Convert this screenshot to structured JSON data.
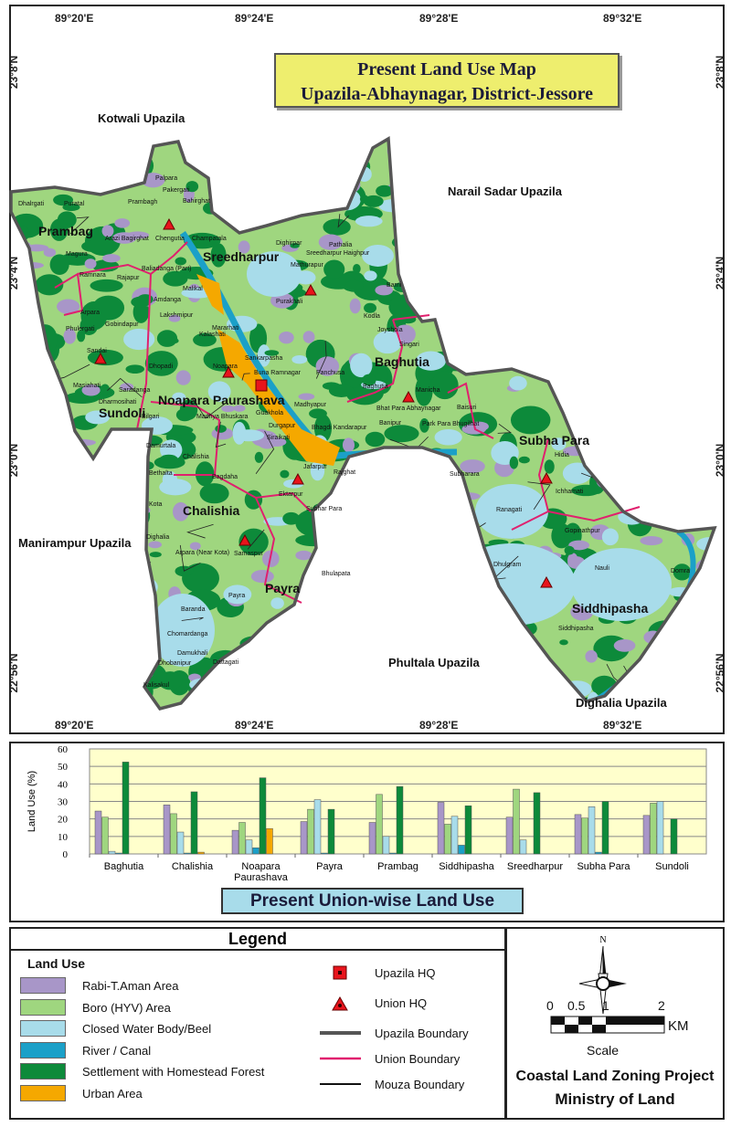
{
  "title": {
    "line1": "Present Land Use  Map",
    "line2": "Upazila-Abhaynagar, District-Jessore"
  },
  "coords": {
    "longitudes": [
      "89°20'E",
      "89°24'E",
      "89°28'E",
      "89°32'E"
    ],
    "latitudes": [
      "23°8'N",
      "23°4'N",
      "23°0'N",
      "22°56'N"
    ]
  },
  "neighbours": [
    "Kotwali Upazila",
    "Narail Sadar Upazila",
    "Manirampur Upazila",
    "Phultala Upazila",
    "Dighalia Upazila"
  ],
  "unions": [
    "Prambag",
    "Sreedharpur",
    "Baghutia",
    "Noapara Paurashava",
    "Sundoli",
    "Chalishia",
    "Subha Para",
    "Payra",
    "Siddhipasha"
  ],
  "villages": [
    "Dhalrgati",
    "Puratal",
    "Prambagh",
    "Palpara",
    "Pakergati",
    "Bahirghat",
    "Arazi Bagirghat",
    "Chengutia",
    "Champatala",
    "Magura",
    "Baliadanga (Part)",
    "Ramnara",
    "Rajapur",
    "Amdanga",
    "Malikal",
    "Lakshmipur",
    "Arpara",
    "Gobindapur",
    "Phulergati",
    "Mararhati",
    "Kalashati",
    "Sandai",
    "Dhopadi",
    "Noapara",
    "Masiahati",
    "Saradanga",
    "Dharmosihati",
    "Bilgari",
    "Madhya Bhuskara",
    "Guakhola",
    "Durgapur",
    "Siraikati",
    "Dighirpar",
    "Pathalia",
    "Sreedharpur Haighpur",
    "Mathurapur",
    "Purakhali",
    "Kodla",
    "Barni",
    "Joyshola",
    "Singari",
    "Sankarpasha",
    "Buna Ramnagar",
    "Panchusa",
    "Baghutia",
    "Madhyapur",
    "Bhagdi Kandarapur",
    "Bhat Para Abhaynagar",
    "Manicha",
    "Banipur",
    "Park Para Bhugilhat",
    "Baisuri",
    "Hidia",
    "Subharara",
    "Ichhamati",
    "Ranagati",
    "Gopinathpur",
    "Dhulgram",
    "Nauli",
    "Domra",
    "Siddhipasha",
    "Damurtala",
    "Chalishia",
    "Bethalta",
    "Kota",
    "Bagdaha",
    "Jafarpur",
    "Rajghat",
    "Ektarpur",
    "Subhar Para",
    "Dighalia",
    "Arpara (Near Kota)",
    "Samaspur",
    "Bhulapata",
    "Payra",
    "Baranda",
    "Chomardanga",
    "Damukhali",
    "Dhobanipur",
    "Dattagati",
    "Kalisakul"
  ],
  "land_use_colors": {
    "rabi": "#a896c8",
    "boro": "#9fd67f",
    "water": "#a8dcea",
    "river": "#1ba0c8",
    "settlement": "#0d8a3a",
    "urban": "#f5a800"
  },
  "boundary_colors": {
    "upazila": "#555555",
    "union": "#e0206e",
    "mouza": "#111111"
  },
  "chart_data": {
    "type": "bar",
    "title": "Present Union-wise Land Use",
    "xlabel": "",
    "ylabel": "Land Use (%)",
    "ylim": [
      0,
      60
    ],
    "yticks": [
      "0",
      "10",
      "20",
      "30",
      "40",
      "50",
      "60"
    ],
    "grid": true,
    "categories": [
      "Baghutia",
      "Chalishia",
      "Noapara Paurashava",
      "Payra",
      "Prambag",
      "Siddhipasha",
      "Sreedharpur",
      "Subha Para",
      "Sundoli"
    ],
    "series": [
      {
        "key": "rabi",
        "values": [
          24.5,
          28,
          13.5,
          18.5,
          18,
          29.5,
          21,
          22.5,
          22
        ]
      },
      {
        "key": "boro",
        "values": [
          21,
          23,
          18,
          25.5,
          34,
          17,
          37,
          20.5,
          29
        ]
      },
      {
        "key": "water",
        "values": [
          1.5,
          12.5,
          8,
          31,
          10,
          21.5,
          8,
          27,
          30
        ]
      },
      {
        "key": "river",
        "values": [
          0.5,
          0.5,
          3.5,
          0.5,
          0.5,
          5,
          0,
          1,
          0
        ]
      },
      {
        "key": "settlement",
        "values": [
          52.5,
          35.5,
          43.5,
          25.5,
          38.5,
          27.5,
          35,
          30,
          20
        ]
      },
      {
        "key": "urban",
        "values": [
          0,
          1,
          14.5,
          0,
          0,
          0,
          0,
          0,
          0
        ]
      }
    ]
  },
  "legend": {
    "title": "Legend",
    "land_use_heading": "Land Use",
    "land_use": [
      {
        "key": "rabi",
        "label": "Rabi-T.Aman Area"
      },
      {
        "key": "boro",
        "label": "Boro (HYV) Area"
      },
      {
        "key": "water",
        "label": "Closed Water Body/Beel"
      },
      {
        "key": "river",
        "label": "River / Canal"
      },
      {
        "key": "settlement",
        "label": "Settlement with Homestead Forest"
      },
      {
        "key": "urban",
        "label": "Urban Area"
      }
    ],
    "symbols": [
      "Upazila HQ",
      "Union HQ",
      "Upazila Boundary",
      "Union Boundary",
      "Mouza Boundary"
    ]
  },
  "scale": {
    "ticks": [
      "0",
      "0.5",
      "1",
      "2"
    ],
    "unit": "KM",
    "label": "Scale"
  },
  "compass": "N",
  "project": {
    "line1": "Coastal Land Zoning Project",
    "line2": "Ministry of Land"
  }
}
